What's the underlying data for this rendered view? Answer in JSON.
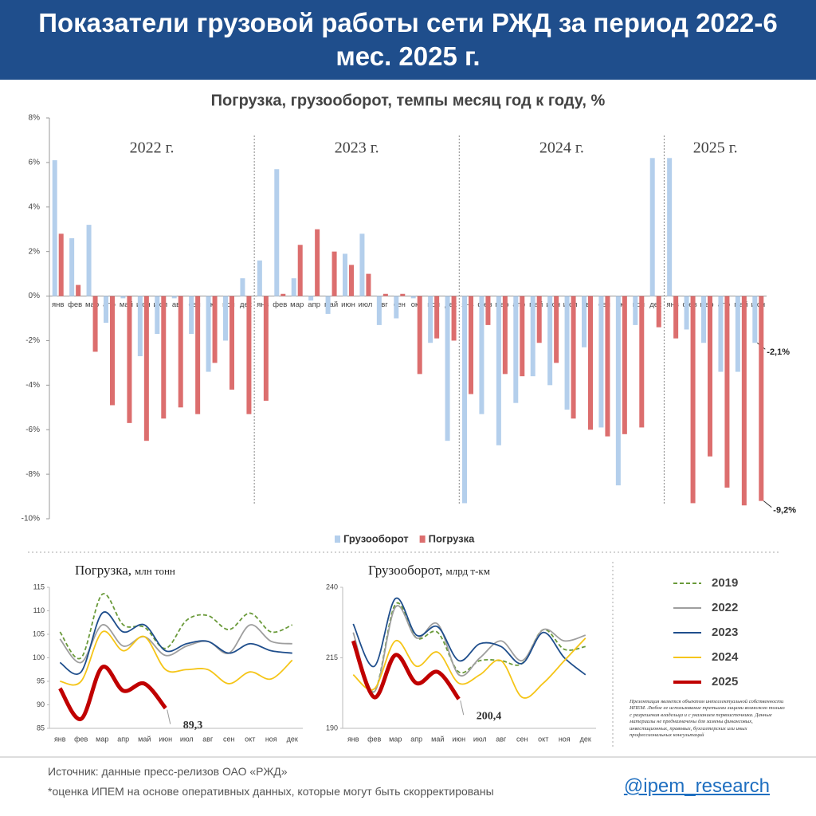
{
  "header": {
    "title": "Показатели грузовой работы сети РЖД за период 2022-6 мес. 2025 г."
  },
  "chart_data": [
    {
      "type": "bar",
      "title": "Погрузка, грузооборот, темпы месяц год к году, %",
      "year_labels": [
        "2022 г.",
        "2023 г.",
        "2024 г.",
        "2025 г."
      ],
      "categories": [
        "янв",
        "фев",
        "мар",
        "апр",
        "май",
        "июн",
        "июл",
        "авг",
        "сен",
        "окт",
        "ноя",
        "дек",
        "янв",
        "фев",
        "мар",
        "апр",
        "май",
        "июн",
        "июл",
        "авг",
        "сен",
        "окт",
        "ноя",
        "дек",
        "янв",
        "фев",
        "мар",
        "апр",
        "май",
        "июн",
        "июл",
        "авг",
        "сен",
        "окт",
        "ноя",
        "дек",
        "янв",
        "фев",
        "мар",
        "апр",
        "май",
        "июн"
      ],
      "series": [
        {
          "name": "Грузооборот",
          "color": "#b4cfec",
          "values": [
            6.1,
            2.6,
            3.2,
            -1.2,
            -0.1,
            -2.7,
            -1.7,
            -0.1,
            -1.7,
            -3.4,
            -2.0,
            0.8,
            1.6,
            5.7,
            0.8,
            -0.2,
            -0.8,
            1.9,
            2.8,
            -1.3,
            -1.0,
            -0.1,
            -2.1,
            -6.5,
            -9.3,
            -5.3,
            -6.7,
            -4.8,
            -3.6,
            -4.0,
            -5.1,
            -2.3,
            -5.9,
            -8.5,
            -1.3,
            6.2,
            6.2,
            -1.5,
            -2.1,
            -3.4,
            -3.4,
            -2.1
          ],
          "value_labels": [
            null,
            null,
            null,
            null,
            null,
            null,
            null,
            null,
            null,
            null,
            null,
            null,
            null,
            null,
            null,
            null,
            null,
            null,
            null,
            null,
            null,
            null,
            null,
            null,
            null,
            null,
            null,
            null,
            null,
            null,
            null,
            null,
            null,
            null,
            null,
            null,
            null,
            null,
            null,
            null,
            null,
            "-2,1%"
          ]
        },
        {
          "name": "Погрузка",
          "color": "#dc6e6e",
          "values": [
            2.8,
            0.5,
            -2.5,
            -4.9,
            -5.7,
            -6.5,
            -5.5,
            -5.0,
            -5.3,
            -3.0,
            -4.2,
            -5.3,
            -4.7,
            0.1,
            2.3,
            3.0,
            2.0,
            1.4,
            1.0,
            0.1,
            0.1,
            -3.5,
            -1.9,
            -2.0,
            -4.4,
            -1.3,
            -3.5,
            -3.6,
            -2.1,
            -3.0,
            -5.5,
            -6.0,
            -6.3,
            -6.2,
            -5.9,
            -1.4,
            -1.9,
            -9.3,
            -7.2,
            -8.6,
            -9.4,
            -9.2
          ],
          "value_labels": [
            null,
            null,
            null,
            null,
            null,
            null,
            null,
            null,
            null,
            null,
            null,
            null,
            null,
            null,
            null,
            null,
            null,
            null,
            null,
            null,
            null,
            null,
            null,
            null,
            null,
            null,
            null,
            null,
            null,
            null,
            null,
            null,
            null,
            null,
            null,
            null,
            null,
            null,
            null,
            null,
            null,
            "-9,2%"
          ]
        }
      ],
      "ylim": [
        -10,
        8
      ],
      "yticks": [
        {
          "value": -10,
          "label": "-10%"
        },
        {
          "value": -8,
          "label": "-8%"
        },
        {
          "value": -6,
          "label": "-6%"
        },
        {
          "value": -4,
          "label": "-4%"
        },
        {
          "value": -2,
          "label": "-2%"
        },
        {
          "value": 0,
          "label": "0%"
        },
        {
          "value": 2,
          "label": "2%"
        },
        {
          "value": 4,
          "label": "4%"
        },
        {
          "value": 6,
          "label": "6%"
        },
        {
          "value": 8,
          "label": "8%"
        }
      ],
      "legend": "bottom"
    },
    {
      "type": "line",
      "title": "Погрузка,",
      "unit": "млн тонн",
      "categories": [
        "янв",
        "фев",
        "мар",
        "апр",
        "май",
        "июн",
        "июл",
        "авг",
        "сен",
        "окт",
        "ноя",
        "дек"
      ],
      "series": [
        {
          "name": "2019",
          "color": "#6a9a3a",
          "dashed": true,
          "values": [
            105.5,
            100,
            113.5,
            107,
            106.5,
            102,
            108,
            109,
            106,
            109.5,
            105.5,
            107
          ]
        },
        {
          "name": "2022",
          "color": "#9e9e9e",
          "values": [
            104,
            99,
            107,
            102.5,
            104.5,
            100.5,
            102.5,
            103.5,
            101,
            107,
            103.5,
            103
          ]
        },
        {
          "name": "2023",
          "color": "#1f4e8c",
          "values": [
            99,
            97,
            109.5,
            105.5,
            107,
            101.5,
            103,
            103.5,
            101,
            103,
            101.5,
            101
          ]
        },
        {
          "name": "2024",
          "color": "#f5c518",
          "values": [
            95,
            95,
            105.5,
            101.5,
            104.5,
            97.5,
            97.5,
            97.5,
            94.5,
            97,
            95.5,
            99.5
          ]
        },
        {
          "name": "2025",
          "color": "#c00000",
          "values": [
            93.5,
            87,
            98,
            93,
            94.5,
            89.3,
            null,
            null,
            null,
            null,
            null,
            null
          ],
          "value_labels": [
            null,
            null,
            null,
            null,
            null,
            "89,3",
            null,
            null,
            null,
            null,
            null,
            null
          ]
        }
      ],
      "ylim": [
        85,
        115
      ],
      "yticks": [
        85,
        90,
        95,
        100,
        105,
        110,
        115
      ]
    },
    {
      "type": "line",
      "title": "Грузооборот,",
      "unit": "млрд т-км",
      "categories": [
        "янв",
        "фев",
        "мар",
        "апр",
        "май",
        "июн",
        "июл",
        "авг",
        "сен",
        "окт",
        "ноя",
        "дек"
      ],
      "series": [
        {
          "name": "2019",
          "color": "#6a9a3a",
          "dashed": true,
          "values": [
            220,
            203,
            234,
            222,
            224,
            210,
            214,
            214,
            213,
            225,
            218,
            219
          ]
        },
        {
          "name": "2022",
          "color": "#9e9e9e",
          "values": [
            224,
            203,
            233,
            222,
            227,
            209,
            215,
            221,
            214,
            225,
            221,
            223
          ]
        },
        {
          "name": "2023",
          "color": "#1f4e8c",
          "values": [
            227,
            212,
            236,
            223,
            226,
            214,
            220,
            219,
            213,
            224,
            215,
            209
          ]
        },
        {
          "name": "2024",
          "color": "#f5c518",
          "values": [
            209,
            204,
            221,
            212,
            217,
            206,
            209,
            214,
            201,
            206,
            214,
            222
          ]
        },
        {
          "name": "2025",
          "color": "#c00000",
          "values": [
            221,
            201,
            216,
            206,
            210,
            200.4,
            null,
            null,
            null,
            null,
            null,
            null
          ],
          "value_labels": [
            null,
            null,
            null,
            null,
            null,
            "200,4",
            null,
            null,
            null,
            null,
            null,
            null
          ]
        }
      ],
      "ylim": [
        190,
        240
      ],
      "yticks": [
        190,
        215,
        240
      ]
    }
  ],
  "disclaimer": "Презентация является объектом интеллектуальной собственности ИПЕМ. Любое ее использование третьими лицами возможно только с разрешения владельца и с указанием первоисточника. Данные материалы не предназначены для замены финансовых, инвестиционных, правовых, бухгалтерских или иных профессиональных консультаций",
  "footer": {
    "source": "Источник: данные пресс-релизов ОАО «РЖД»",
    "note": "*оценка ИПЕМ на основе оперативных данных, которые могут быть скорректированы",
    "handle": "@ipem_research"
  }
}
